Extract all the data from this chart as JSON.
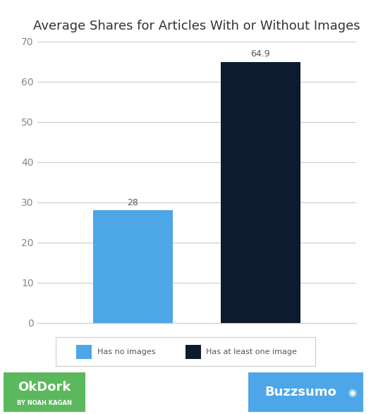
{
  "title": "Average Shares for Articles With or Without Images",
  "categories": [
    "Has no images",
    "Has at least one image"
  ],
  "values": [
    28,
    64.9
  ],
  "bar_colors": [
    "#4da6e8",
    "#0d1b2e"
  ],
  "labels": [
    "28",
    "64.9"
  ],
  "ylim": [
    0,
    70
  ],
  "yticks": [
    0,
    10,
    20,
    30,
    40,
    50,
    60,
    70
  ],
  "background_color": "#ffffff",
  "grid_color": "#cccccc",
  "title_fontsize": 13,
  "tick_fontsize": 10,
  "label_fontsize": 9,
  "legend_labels": [
    "Has no images",
    "Has at least one image"
  ],
  "legend_colors": [
    "#4da6e8",
    "#0d1b2e"
  ],
  "okdork_bg": "#5cb85c",
  "okdork_text": "OkDork",
  "okdork_sub": "BY NOAH KAGAN",
  "buzzsumo_bg": "#4da6e8",
  "buzzsumo_text": "Buzzsumo"
}
